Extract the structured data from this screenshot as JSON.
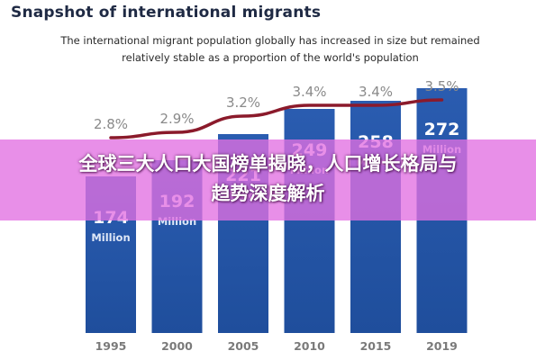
{
  "header": {
    "title": "Snapshot of international migrants",
    "subtitle_line1": "The international migrant population globally has increased in size but remained",
    "subtitle_line2": "relatively stable as a proportion of the world's population"
  },
  "overlay": {
    "line1": "全球三大人口大国榜单揭晓，人口增长格局与",
    "line2": "趋势深度解析"
  },
  "colors": {
    "bar": "#1f4e9c",
    "bar_top": "#2a5cb0",
    "line": "#8b1a2b",
    "label": "#ffffff",
    "pct_label": "#8a8a8a",
    "axis_label": "#7a7a7a",
    "overlay": "#e270e2"
  },
  "chart_data": {
    "type": "bar",
    "title": "Snapshot of international migrants",
    "categories": [
      "1995",
      "2000",
      "2005",
      "2010",
      "2015",
      "2019"
    ],
    "series": [
      {
        "values": [
          174,
          192,
          221,
          249,
          258,
          272
        ],
        "value_unit": "Million"
      },
      {
        "type": "line",
        "values": [
          2.8,
          2.9,
          3.2,
          3.4,
          3.4,
          3.5
        ],
        "value_suffix": "%"
      }
    ],
    "ylim": [
      0,
      290
    ],
    "legend": "none",
    "grid": false
  }
}
